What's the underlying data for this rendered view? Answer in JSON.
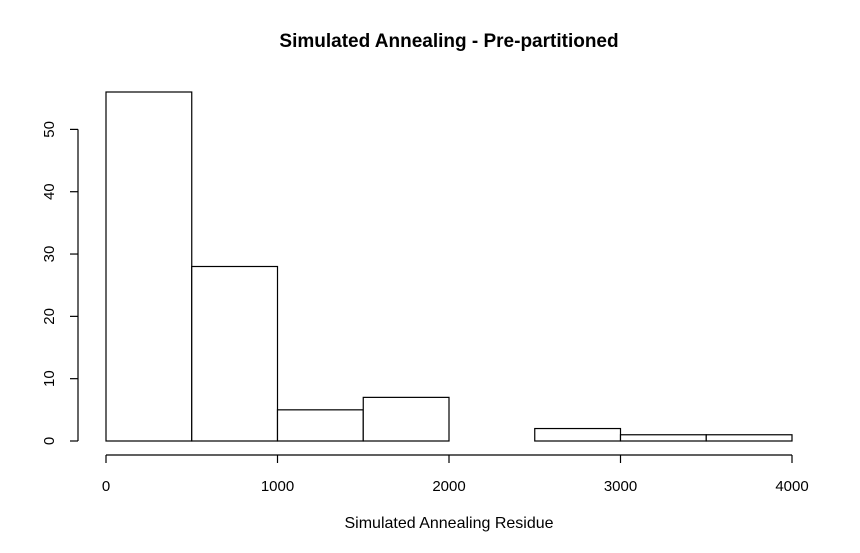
{
  "chart_data": {
    "type": "bar",
    "title": "Simulated Annealing - Pre-partitioned",
    "xlabel": "Simulated Annealing Residue",
    "ylabel": "",
    "bins": [
      {
        "start": 0,
        "end": 500,
        "count": 56
      },
      {
        "start": 500,
        "end": 1000,
        "count": 28
      },
      {
        "start": 1000,
        "end": 1500,
        "count": 5
      },
      {
        "start": 1500,
        "end": 2000,
        "count": 7
      },
      {
        "start": 2000,
        "end": 2500,
        "count": 0
      },
      {
        "start": 2500,
        "end": 3000,
        "count": 2
      },
      {
        "start": 3000,
        "end": 3500,
        "count": 1
      },
      {
        "start": 3500,
        "end": 4000,
        "count": 1
      }
    ],
    "xlim": [
      0,
      4000
    ],
    "ylim": [
      0,
      56
    ],
    "x_ticks": [
      0,
      1000,
      2000,
      3000,
      4000
    ],
    "y_ticks": [
      0,
      10,
      20,
      30,
      40,
      50
    ],
    "grid": false,
    "bar_fill": "#ffffff",
    "bar_stroke": "#000000"
  }
}
